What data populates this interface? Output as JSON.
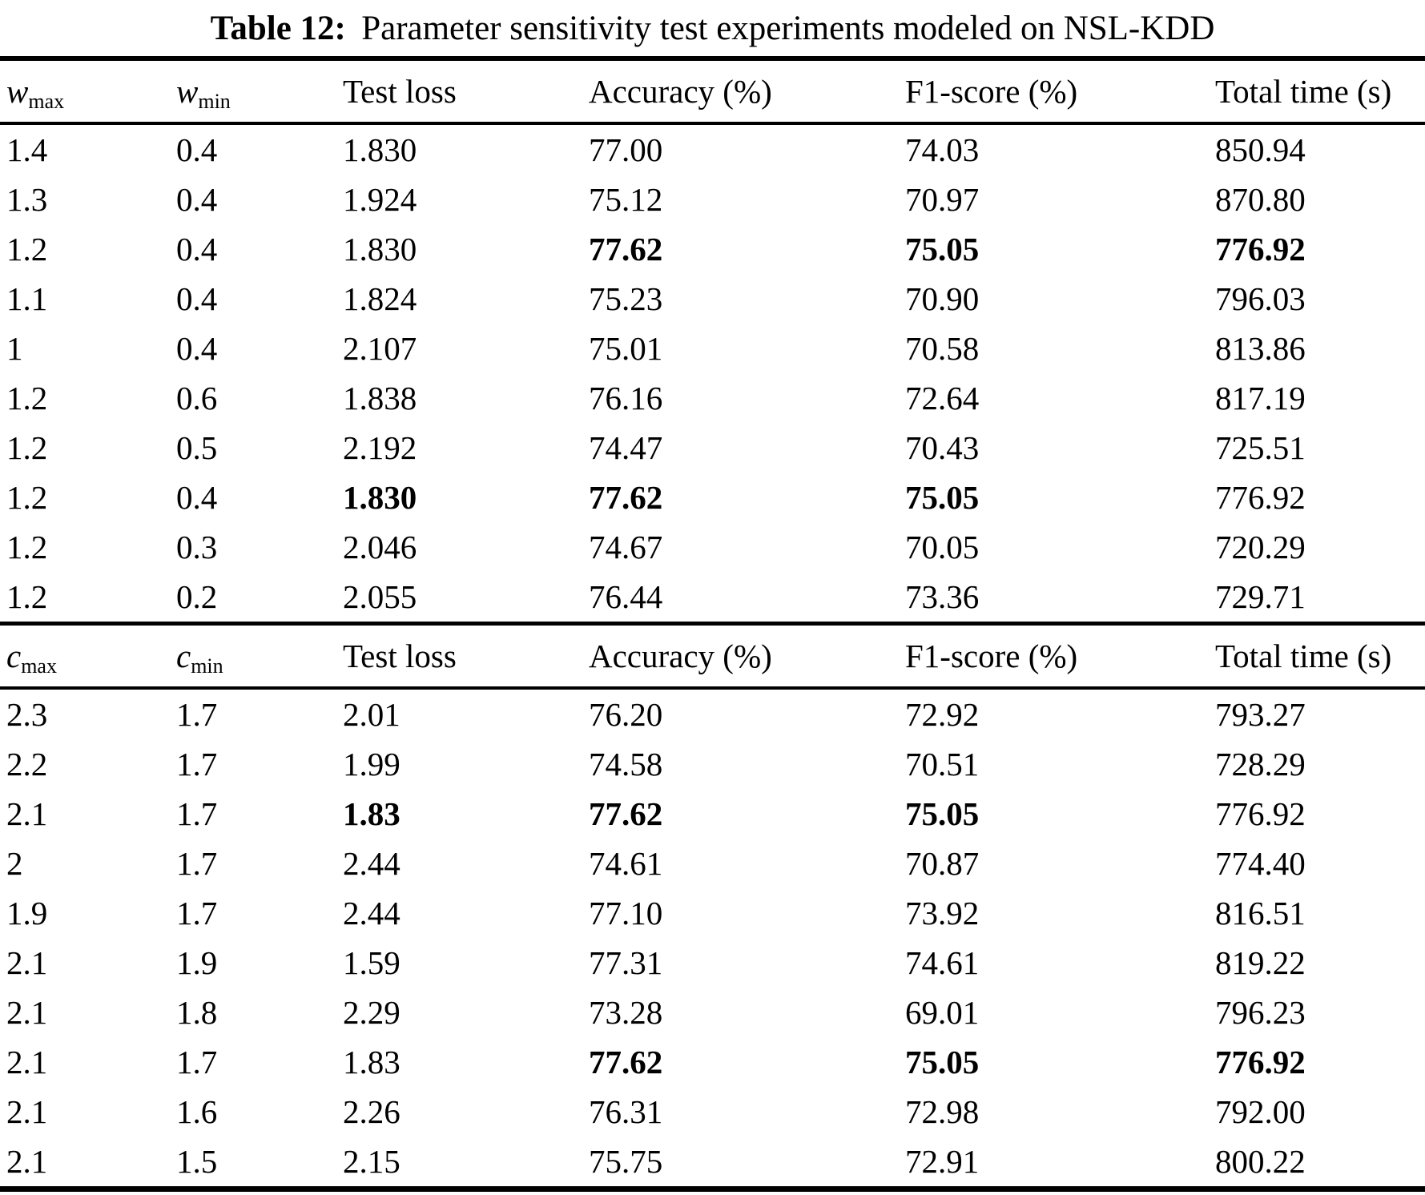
{
  "title": {
    "label": "Table 12:",
    "text": "Parameter sensitivity test experiments modeled on NSL-KDD"
  },
  "table": {
    "sections": [
      {
        "columns": [
          {
            "base": "w",
            "sub": "max"
          },
          {
            "base": "w",
            "sub": "min"
          },
          "Test loss",
          "Accuracy (%)",
          "F1-score (%)",
          "Total time (s)"
        ],
        "rows": [
          {
            "cells": [
              "1.4",
              "0.4",
              "1.830",
              "77.00",
              "74.03",
              "850.94"
            ],
            "bold": []
          },
          {
            "cells": [
              "1.3",
              "0.4",
              "1.924",
              "75.12",
              "70.97",
              "870.80"
            ],
            "bold": []
          },
          {
            "cells": [
              "1.2",
              "0.4",
              "1.830",
              "77.62",
              "75.05",
              "776.92"
            ],
            "bold": [
              3,
              4,
              5
            ]
          },
          {
            "cells": [
              "1.1",
              "0.4",
              "1.824",
              "75.23",
              "70.90",
              "796.03"
            ],
            "bold": []
          },
          {
            "cells": [
              "1",
              "0.4",
              "2.107",
              "75.01",
              "70.58",
              "813.86"
            ],
            "bold": []
          },
          {
            "cells": [
              "1.2",
              "0.6",
              "1.838",
              "76.16",
              "72.64",
              "817.19"
            ],
            "bold": []
          },
          {
            "cells": [
              "1.2",
              "0.5",
              "2.192",
              "74.47",
              "70.43",
              "725.51"
            ],
            "bold": []
          },
          {
            "cells": [
              "1.2",
              "0.4",
              "1.830",
              "77.62",
              "75.05",
              "776.92"
            ],
            "bold": [
              2,
              3,
              4
            ]
          },
          {
            "cells": [
              "1.2",
              "0.3",
              "2.046",
              "74.67",
              "70.05",
              "720.29"
            ],
            "bold": []
          },
          {
            "cells": [
              "1.2",
              "0.2",
              "2.055",
              "76.44",
              "73.36",
              "729.71"
            ],
            "bold": []
          }
        ]
      },
      {
        "columns": [
          {
            "base": "c",
            "sub": "max"
          },
          {
            "base": "c",
            "sub": "min"
          },
          "Test loss",
          "Accuracy (%)",
          "F1-score (%)",
          "Total time (s)"
        ],
        "rows": [
          {
            "cells": [
              "2.3",
              "1.7",
              "2.01",
              "76.20",
              "72.92",
              "793.27"
            ],
            "bold": []
          },
          {
            "cells": [
              "2.2",
              "1.7",
              "1.99",
              "74.58",
              "70.51",
              "728.29"
            ],
            "bold": []
          },
          {
            "cells": [
              "2.1",
              "1.7",
              "1.83",
              "77.62",
              "75.05",
              "776.92"
            ],
            "bold": [
              2,
              3,
              4
            ]
          },
          {
            "cells": [
              "2",
              "1.7",
              "2.44",
              "74.61",
              "70.87",
              "774.40"
            ],
            "bold": []
          },
          {
            "cells": [
              "1.9",
              "1.7",
              "2.44",
              "77.10",
              "73.92",
              "816.51"
            ],
            "bold": []
          },
          {
            "cells": [
              "2.1",
              "1.9",
              "1.59",
              "77.31",
              "74.61",
              "819.22"
            ],
            "bold": []
          },
          {
            "cells": [
              "2.1",
              "1.8",
              "2.29",
              "73.28",
              "69.01",
              "796.23"
            ],
            "bold": []
          },
          {
            "cells": [
              "2.1",
              "1.7",
              "1.83",
              "77.62",
              "75.05",
              "776.92"
            ],
            "bold": [
              3,
              4,
              5
            ]
          },
          {
            "cells": [
              "2.1",
              "1.6",
              "2.26",
              "76.31",
              "72.98",
              "792.00"
            ],
            "bold": []
          },
          {
            "cells": [
              "2.1",
              "1.5",
              "2.15",
              "75.75",
              "72.91",
              "800.22"
            ],
            "bold": []
          }
        ]
      }
    ]
  }
}
